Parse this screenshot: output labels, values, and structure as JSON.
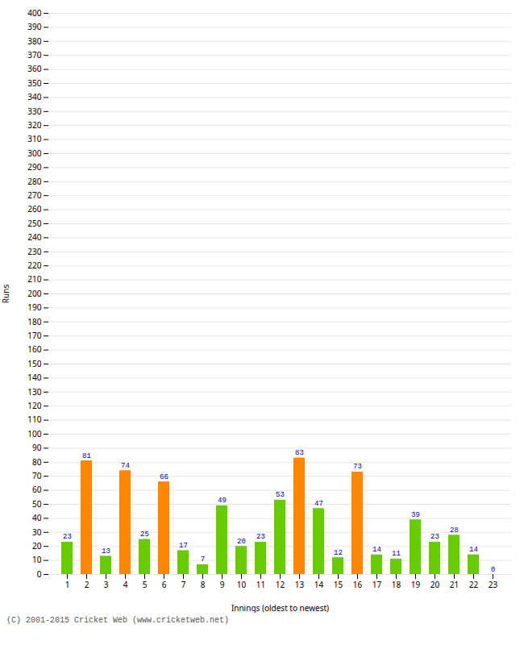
{
  "chart_data": {
    "type": "bar",
    "xlabel": "Innings (oldest to newest)",
    "ylabel": "Runs",
    "categories": [
      "1",
      "2",
      "3",
      "4",
      "5",
      "6",
      "7",
      "8",
      "9",
      "10",
      "11",
      "12",
      "13",
      "14",
      "15",
      "16",
      "17",
      "18",
      "19",
      "20",
      "21",
      "22",
      "23"
    ],
    "values": [
      23,
      81,
      13,
      74,
      25,
      66,
      17,
      7,
      49,
      20,
      23,
      53,
      83,
      47,
      12,
      73,
      14,
      11,
      39,
      23,
      28,
      14,
      0
    ],
    "colors": [
      "#66cc00",
      "#ff8800",
      "#66cc00",
      "#ff8800",
      "#66cc00",
      "#ff8800",
      "#66cc00",
      "#66cc00",
      "#66cc00",
      "#66cc00",
      "#66cc00",
      "#66cc00",
      "#ff8800",
      "#66cc00",
      "#66cc00",
      "#ff8800",
      "#66cc00",
      "#66cc00",
      "#66cc00",
      "#66cc00",
      "#66cc00",
      "#66cc00",
      "#66cc00"
    ],
    "ylim": [
      0,
      400
    ],
    "yticks": [
      0,
      10,
      20,
      30,
      40,
      50,
      60,
      70,
      80,
      90,
      100,
      110,
      120,
      130,
      140,
      150,
      160,
      170,
      180,
      190,
      200,
      210,
      220,
      230,
      240,
      250,
      260,
      270,
      280,
      290,
      300,
      310,
      320,
      330,
      340,
      350,
      360,
      370,
      380,
      390,
      400
    ],
    "grid": true,
    "data_labels": true,
    "annotations": [
      "(C) 2001-2015 Cricket Web (www.cricketweb.net)"
    ]
  }
}
